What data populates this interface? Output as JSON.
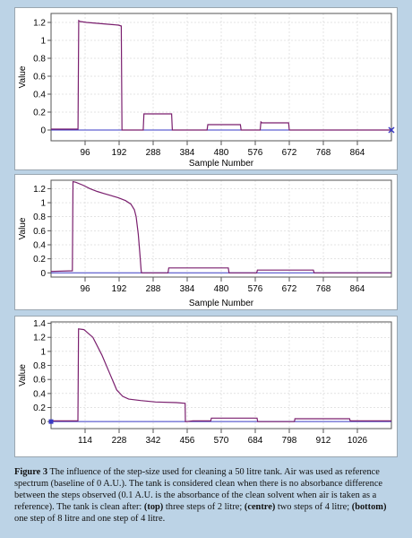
{
  "chart_data": [
    {
      "type": "line",
      "xlabel": "Sample Number",
      "ylabel": "Value",
      "xlim": [
        0,
        960
      ],
      "ylim": [
        -0.12,
        1.3
      ],
      "xticks": [
        96,
        192,
        288,
        384,
        480,
        576,
        672,
        768,
        864
      ],
      "yticks": [
        0,
        0.2,
        0.4,
        0.6,
        0.8,
        1,
        1.2
      ],
      "ytick_labels": [
        "0",
        "0.2",
        "0.4",
        "0.6",
        "0.8",
        "1",
        "1.2"
      ],
      "series": [
        {
          "x": [
            0,
            76,
            78,
            82,
            100,
            130,
            160,
            190,
            198,
            200,
            260,
            262,
            264,
            340,
            342,
            345,
            440,
            442,
            445,
            534,
            536,
            538,
            590,
            592,
            595,
            670,
            672,
            675,
            770,
            772,
            775,
            960
          ],
          "y": [
            0.01,
            0.01,
            1.22,
            1.21,
            1.2,
            1.19,
            1.18,
            1.17,
            1.16,
            0.0,
            0.0,
            0.18,
            0.18,
            0.18,
            0.0,
            0.0,
            0.0,
            0.06,
            0.06,
            0.06,
            0.0,
            0.0,
            0.0,
            0.09,
            0.08,
            0.08,
            0.0,
            0.0,
            0.0,
            0.0,
            0.0,
            0.0
          ]
        }
      ]
    },
    {
      "type": "line",
      "xlabel": "Sample Number",
      "ylabel": "Value",
      "xlim": [
        0,
        960
      ],
      "ylim": [
        -0.06,
        1.32
      ],
      "xticks": [
        96,
        192,
        288,
        384,
        480,
        576,
        672,
        768,
        864
      ],
      "yticks": [
        0,
        0.2,
        0.4,
        0.6,
        0.8,
        1,
        1.2
      ],
      "ytick_labels": [
        "0",
        "0.2",
        "0.4",
        "0.6",
        "0.8",
        "1",
        "1.2"
      ],
      "series": [
        {
          "x": [
            0,
            60,
            62,
            70,
            90,
            110,
            130,
            150,
            170,
            190,
            210,
            225,
            235,
            240,
            246,
            250,
            254,
            255,
            256,
            330,
            332,
            335,
            500,
            502,
            505,
            580,
            582,
            585,
            740,
            742,
            745,
            960
          ],
          "y": [
            0.02,
            0.03,
            1.3,
            1.29,
            1.25,
            1.2,
            1.16,
            1.13,
            1.1,
            1.07,
            1.03,
            0.98,
            0.9,
            0.8,
            0.55,
            0.3,
            0.05,
            0.0,
            0.0,
            0.0,
            0.07,
            0.07,
            0.07,
            0.0,
            0.0,
            0.0,
            0.04,
            0.04,
            0.04,
            0.0,
            0.0,
            0.0
          ]
        }
      ]
    },
    {
      "type": "line",
      "xlabel": "",
      "ylabel": "Value",
      "xlim": [
        0,
        1140
      ],
      "ylim": [
        -0.1,
        1.42
      ],
      "xticks": [
        114,
        228,
        342,
        456,
        570,
        684,
        798,
        912,
        1026
      ],
      "yticks": [
        0,
        0.2,
        0.4,
        0.6,
        0.8,
        1,
        1.2,
        1.4
      ],
      "ytick_labels": [
        "0",
        "0.2",
        "0.4",
        "0.6",
        "0.8",
        "1",
        "1.2",
        "1.4"
      ],
      "series": [
        {
          "x": [
            0,
            90,
            92,
            110,
            140,
            170,
            200,
            220,
            240,
            260,
            300,
            350,
            420,
            449,
            450,
            452,
            475,
            535,
            537,
            540,
            690,
            692,
            695,
            815,
            817,
            820,
            1000,
            1002,
            1005,
            1140
          ],
          "y": [
            0.01,
            0.01,
            1.32,
            1.31,
            1.2,
            0.95,
            0.65,
            0.45,
            0.36,
            0.32,
            0.3,
            0.28,
            0.27,
            0.26,
            0.0,
            0.0,
            0.01,
            0.01,
            0.05,
            0.05,
            0.05,
            0.0,
            0.0,
            0.0,
            0.04,
            0.04,
            0.04,
            0.01,
            0.01,
            0.01
          ]
        }
      ]
    }
  ],
  "caption": {
    "fig_label": "Figure 3",
    "text_a": " The influence of the step-size used for cleaning a 50 litre tank. Air was used as reference spectrum (baseline of 0 A.U.). The tank is considered clean when there is no absorbance difference between the steps observed (0.1 A.U. is the absorbance of the clean solvent when air is taken as a reference). The tank is clean after: ",
    "top_label": "(top)",
    "text_b": " three steps of 2 litre; ",
    "centre_label": "(centre)",
    "text_c": " two steps of 4 litre; ",
    "bottom_label": "(bottom)",
    "text_d": " one step of 8 litre and one step of 4 litre."
  },
  "colors": {
    "line": "#7a1f6e",
    "baseline": "#3a3ac4",
    "axis": "#555555",
    "grid": "#c8c8c8"
  }
}
